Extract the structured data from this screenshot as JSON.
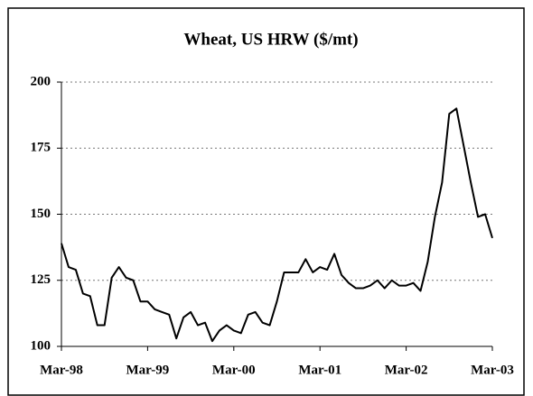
{
  "chart_data": {
    "type": "line",
    "title": "Wheat, US HRW ($/mt)",
    "categories": [
      "Mar-98",
      null,
      null,
      null,
      null,
      null,
      null,
      null,
      null,
      null,
      null,
      null,
      "Mar-99",
      null,
      null,
      null,
      null,
      null,
      null,
      null,
      null,
      null,
      null,
      null,
      "Mar-00",
      null,
      null,
      null,
      null,
      null,
      null,
      null,
      null,
      null,
      null,
      null,
      "Mar-01",
      null,
      null,
      null,
      null,
      null,
      null,
      null,
      null,
      null,
      null,
      null,
      "Mar-02",
      null,
      null,
      null,
      null,
      null,
      null,
      null,
      null,
      null,
      null,
      null,
      "Mar-03"
    ],
    "series": [
      {
        "name": "Wheat, US HRW",
        "color": "#000000",
        "values": [
          139,
          130,
          129,
          120,
          119,
          108,
          108,
          126,
          130,
          126,
          125,
          117,
          117,
          114,
          113,
          112,
          103,
          111,
          113,
          108,
          109,
          102,
          106,
          108,
          106,
          105,
          112,
          113,
          109,
          108,
          117,
          128,
          128,
          128,
          133,
          128,
          130,
          129,
          135,
          127,
          124,
          122,
          122,
          123,
          125,
          122,
          125,
          123,
          123,
          124,
          121,
          132,
          149,
          162,
          188,
          190,
          176,
          162,
          149,
          150,
          141
        ]
      }
    ],
    "ylim": [
      100,
      200
    ],
    "yticks": [
      100,
      125,
      150,
      175,
      200
    ],
    "grid": true
  }
}
